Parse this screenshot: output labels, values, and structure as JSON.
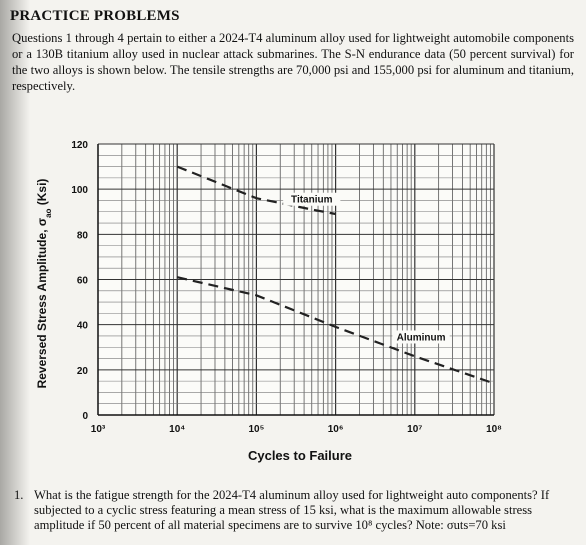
{
  "page": {
    "heading": "PRACTICE PROBLEMS",
    "intro": "Questions 1 through 4 pertain to either a 2024-T4 aluminum alloy used for lightweight automobile components or a 130B titanium alloy used in nuclear attack submarines. The S-N endurance data (50 percent survival) for the two alloys is shown below. The tensile strengths are 70,000 psi and 155,000 psi for aluminum and titanium, respectively.",
    "question_number": "1.",
    "question_text": "What is the fatigue strength for the 2024-T4 aluminum alloy used for lightweight auto components? If subjected to a cyclic stress featuring a mean stress of 15 ksi, what is the maximum allowable stress amplitude if 50 percent of all material specimens are to survive 10⁸ cycles? Note: σuts=70 ksi"
  },
  "chart_data": {
    "type": "line",
    "xlabel": "Cycles to Failure",
    "ylabel": "Reversed Stress Amplitude, σ",
    "ylabel_subscript": "ao",
    "ylabel_unit": " (Ksi)",
    "x_scale": "log",
    "xlim": [
      1000,
      100000000
    ],
    "ylim": [
      0,
      120
    ],
    "x_ticks": [
      1000,
      10000,
      100000,
      1000000,
      10000000,
      100000000
    ],
    "x_tick_labels": [
      "10³",
      "10⁴",
      "10⁵",
      "10⁶",
      "10⁷",
      "10⁸"
    ],
    "y_ticks": [
      0,
      20,
      40,
      60,
      80,
      100,
      120
    ],
    "y_tick_labels": [
      "0",
      "20",
      "40",
      "60",
      "80",
      "100",
      "120"
    ],
    "grid": true,
    "series": [
      {
        "name": "Titanium",
        "style": "dashed",
        "color": "#222222",
        "points": [
          [
            10000,
            110
          ],
          [
            100000,
            96
          ],
          [
            500000,
            91
          ],
          [
            1000000,
            89
          ]
        ]
      },
      {
        "name": "Aluminum",
        "style": "dashed",
        "color": "#222222",
        "points": [
          [
            10000,
            61
          ],
          [
            100000,
            53
          ],
          [
            1000000,
            39
          ],
          [
            10000000,
            26
          ],
          [
            100000000,
            14
          ]
        ]
      }
    ],
    "annotations": [
      {
        "text": "Titanium",
        "x": 500000,
        "y": 94
      },
      {
        "text": "Aluminum",
        "x": 12000000,
        "y": 33
      }
    ]
  }
}
